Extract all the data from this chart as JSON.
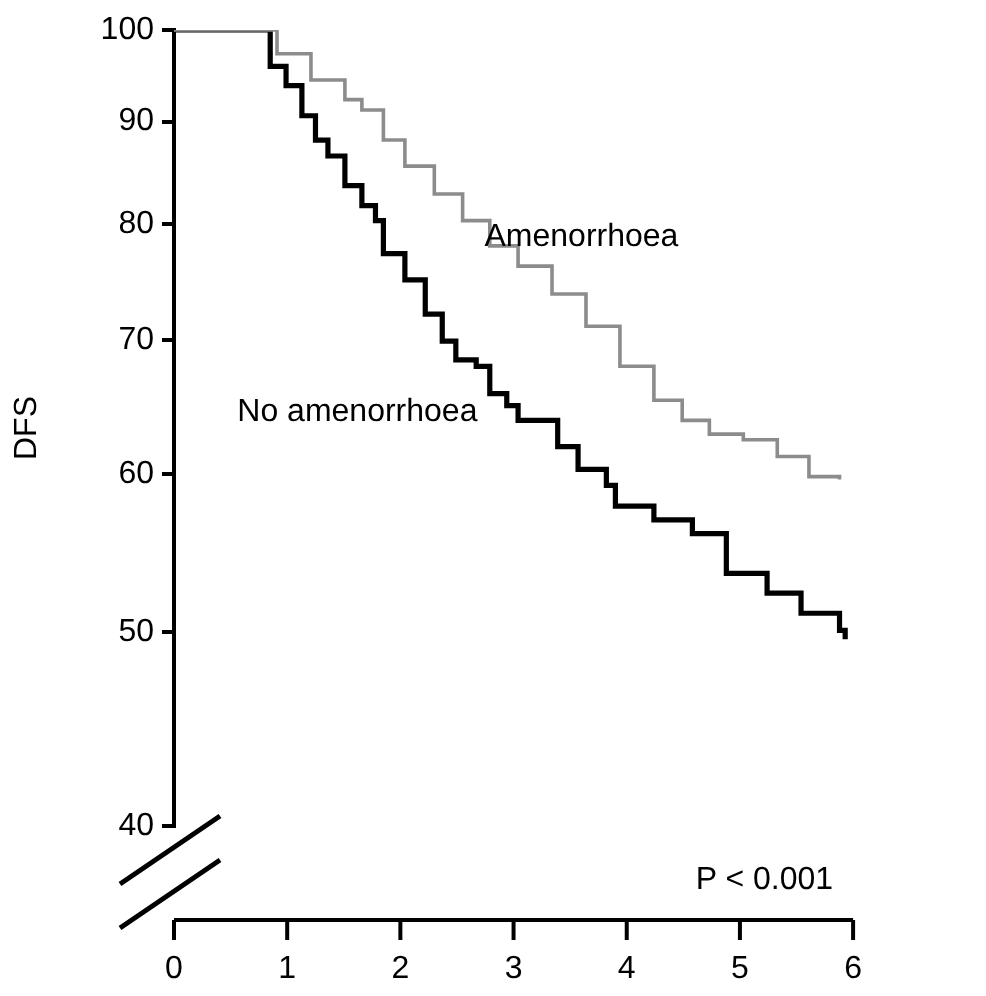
{
  "chart_data": {
    "type": "step",
    "ylabel": "DFS",
    "xlim": [
      0,
      6
    ],
    "xticks": [
      0,
      1,
      2,
      3,
      4,
      5,
      6
    ],
    "ylim": [
      40,
      100
    ],
    "yticks": [
      40,
      50,
      60,
      70,
      80,
      90,
      100
    ],
    "log": "y",
    "grid": false,
    "legend": false,
    "marker": "none",
    "line_style": "solid",
    "annotations": [
      "P < 0.001"
    ],
    "series": [
      {
        "name": "Amenorrhoea",
        "color": "#8c8c8c",
        "x": [
          0,
          0.69,
          0.91,
          1.21,
          1.51,
          1.66,
          1.85,
          2.04,
          2.3,
          2.55,
          2.79,
          3.04,
          3.34,
          3.64,
          3.94,
          4.24,
          4.49,
          4.73,
          5.03,
          5.33,
          5.61,
          5.88
        ],
        "values": [
          100,
          100,
          97.3,
          94.4,
          92.3,
          91.2,
          88.1,
          85.5,
          82.8,
          80.3,
          78,
          76.2,
          73.8,
          71.1,
          67.9,
          65.3,
          63.8,
          62.8,
          62.4,
          61.2,
          59.8,
          59.6
        ]
      },
      {
        "name": "No amenorrhoea",
        "color": "#000000",
        "x": [
          0,
          0.69,
          0.85,
          0.99,
          1.13,
          1.25,
          1.36,
          1.51,
          1.66,
          1.78,
          1.85,
          2.04,
          2.22,
          2.37,
          2.49,
          2.67,
          2.79,
          2.94,
          3.04,
          3.39,
          3.57,
          3.82,
          3.9,
          4.24,
          4.58,
          4.88,
          5.24,
          5.54,
          5.88,
          5.93
        ],
        "values": [
          100,
          100,
          95.9,
          93.8,
          90.6,
          88.1,
          86.5,
          83.6,
          81.7,
          80.3,
          77.3,
          75,
          72.1,
          69.9,
          68.4,
          67.9,
          65.8,
          64.9,
          63.8,
          61.9,
          60.3,
          59.2,
          57.8,
          56.9,
          56,
          53.5,
          52.3,
          51.1,
          50.1,
          49.6
        ]
      }
    ]
  }
}
